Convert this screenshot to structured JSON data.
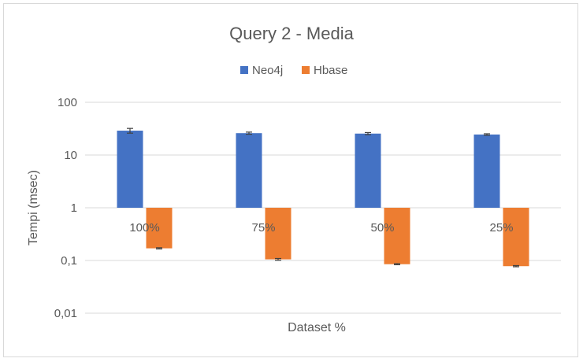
{
  "chart_data": {
    "type": "bar",
    "title": "Query 2 - Media",
    "xlabel": "Dataset %",
    "ylabel": "Tempi (msec)",
    "categories": [
      "100%",
      "75%",
      "50%",
      "25%"
    ],
    "y_scale": "log",
    "ylim": [
      0.01,
      100
    ],
    "yticks": [
      100,
      10,
      1,
      0.1,
      0.01
    ],
    "ytick_labels": [
      "100",
      "10",
      "1",
      "0,1",
      "0,01"
    ],
    "baseline": 1,
    "grid": true,
    "legend_position": "top-center",
    "series": [
      {
        "name": "Neo4j",
        "color": "#4472c4",
        "values": [
          29,
          26,
          25.5,
          24.5
        ],
        "errors": [
          3,
          1.2,
          1.2,
          0.8
        ]
      },
      {
        "name": "Hbase",
        "color": "#ed7d31",
        "values": [
          0.17,
          0.105,
          0.085,
          0.078
        ],
        "errors": [
          0.004,
          0.004,
          0.002,
          0.002
        ]
      }
    ]
  }
}
